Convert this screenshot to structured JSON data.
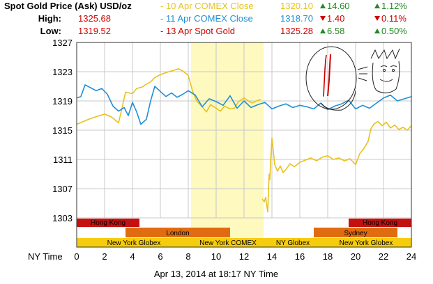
{
  "header": {
    "title": "Spot Gold Price (Ask) USD/oz",
    "high_label": "High:",
    "high_value": "1325.68",
    "low_label": "Low:",
    "low_value": "1319.52",
    "rows": [
      {
        "label": "- 10 Apr COMEX Close",
        "price": "1320.10",
        "change": "14.60",
        "pct": "1.12%",
        "dir": "up",
        "color": "#e8c21c"
      },
      {
        "label": "- 11 Apr COMEX Close",
        "price": "1318.70",
        "change": "1.40",
        "pct": "0.11%",
        "dir": "down",
        "color": "#1f8fd6"
      },
      {
        "label": "- 13 Apr Spot Gold",
        "price": "1325.28",
        "change": "6.58",
        "pct": "0.50%",
        "dir": "up",
        "color": "#cc0000"
      }
    ]
  },
  "colors": {
    "up": "#228822",
    "down": "#cc0000",
    "high": "#cc0000",
    "gold": "#e8c21c",
    "blue": "#1f8fd6",
    "red": "#cc0000",
    "hongkong": "#c41010",
    "london": "#e06b10",
    "sydney": "#e06b10",
    "newyork": "#f6cc0f",
    "highlight": "#fdf9bf"
  },
  "sessions": [
    {
      "name": "Hong Kong",
      "row": 0,
      "spans": [
        [
          0,
          4.5
        ],
        [
          19.5,
          24
        ]
      ]
    },
    {
      "name": "London",
      "row": 1,
      "spans": [
        [
          3.5,
          11
        ]
      ]
    },
    {
      "name": "Sydney",
      "row": 1,
      "spans": [
        [
          17,
          23
        ]
      ]
    },
    {
      "name": "New York Globex",
      "row": 2,
      "spans": [
        [
          0,
          8.2
        ]
      ]
    },
    {
      "name": "New York COMEX",
      "row": 2,
      "spans": [
        [
          8.2,
          13.5
        ]
      ]
    },
    {
      "name": "NY Globex",
      "row": 2,
      "spans": [
        [
          13.5,
          17.5
        ]
      ]
    },
    {
      "name": "New York Globex",
      "row": 2,
      "spans": [
        [
          17.5,
          24
        ]
      ]
    }
  ],
  "footer": {
    "x_title": "NY Time",
    "timestamp": "Apr 13, 2014 at 18:17 NY Time"
  },
  "chart_data": {
    "type": "line",
    "xlabel": "NY Time",
    "ylabel": "",
    "xlim": [
      0,
      24
    ],
    "ylim": [
      1303,
      1327
    ],
    "xticks": [
      0,
      2,
      4,
      6,
      8,
      10,
      12,
      14,
      16,
      18,
      20,
      22,
      24
    ],
    "yticks": [
      1303,
      1307,
      1311,
      1315,
      1319,
      1323,
      1327
    ],
    "highlight_range": [
      8.2,
      13.4
    ],
    "series": [
      {
        "name": "10 Apr",
        "color": "#e8c21c",
        "x": [
          0,
          0.5,
          1,
          1.5,
          2,
          2.5,
          3,
          3.2,
          3.5,
          4,
          4.3,
          4.7,
          5,
          5.3,
          5.6,
          6,
          6.3,
          6.6,
          7,
          7.3,
          7.6,
          8,
          8.3,
          8.6,
          9,
          9.3,
          9.6,
          10,
          10.3,
          10.6,
          11,
          11.3,
          11.6,
          12,
          12.3,
          12.6,
          13,
          13.2
        ],
        "y": [
          1315.8,
          1316.2,
          1316.6,
          1316.9,
          1317.2,
          1316.8,
          1316.0,
          1317.6,
          1320.2,
          1320.0,
          1320.7,
          1320.9,
          1321.3,
          1321.6,
          1322.2,
          1322.6,
          1322.8,
          1323.0,
          1323.2,
          1323.4,
          1323.1,
          1322.5,
          1320.4,
          1319.0,
          1318.2,
          1317.5,
          1318.5,
          1318.0,
          1317.6,
          1318.3,
          1317.9,
          1318.0,
          1318.9,
          1319.4,
          1319.0,
          1318.7,
          1319.1,
          1319.2
        ]
      },
      {
        "name": "11 Apr",
        "color": "#1f8fd6",
        "x": [
          0,
          0.3,
          0.6,
          1,
          1.4,
          1.8,
          2.2,
          2.6,
          3,
          3.4,
          3.7,
          4,
          4.3,
          4.6,
          5,
          5.3,
          5.6,
          6,
          6.4,
          6.8,
          7.2,
          7.6,
          8,
          8.5,
          9,
          9.5,
          10,
          10.5,
          11,
          11.5,
          12,
          12.5,
          13,
          13.5,
          14,
          14.5,
          15,
          15.5,
          16,
          16.5,
          17,
          17.5,
          18,
          18.5,
          19,
          19.5,
          20,
          20.5,
          21,
          21.5,
          22,
          22.5,
          23,
          23.5,
          24
        ],
        "y": [
          1319.4,
          1319.6,
          1321.2,
          1320.8,
          1320.4,
          1320.7,
          1319.9,
          1318.3,
          1317.6,
          1318.1,
          1317.0,
          1318.8,
          1317.5,
          1315.8,
          1316.5,
          1319.0,
          1321.0,
          1320.3,
          1319.6,
          1320.1,
          1319.5,
          1319.9,
          1320.4,
          1319.8,
          1318.2,
          1319.3,
          1318.9,
          1318.4,
          1319.7,
          1318.0,
          1319.0,
          1318.1,
          1318.5,
          1318.8,
          1317.9,
          1318.3,
          1318.6,
          1318.1,
          1318.4,
          1318.2,
          1317.9,
          1318.7,
          1317.8,
          1318.3,
          1318.6,
          1319.1,
          1317.9,
          1318.4,
          1318.0,
          1318.7,
          1319.4,
          1319.8,
          1319.0,
          1319.3,
          1319.6
        ]
      },
      {
        "name": "13 Apr",
        "color": "#cc0000",
        "x": [
          17.7,
          17.75,
          17.8,
          17.85,
          17.9
        ],
        "y": [
          1319.6,
          1321.5,
          1323.3,
          1324.6,
          1325.3
        ]
      },
      {
        "name": "10 Apr (late)",
        "color": "#e8c21c",
        "x": [
          13.3,
          13.45,
          13.55,
          13.7,
          13.8,
          13.85,
          13.9,
          14.0,
          14.2,
          14.4,
          14.6,
          14.8,
          15.0,
          15.3,
          15.6,
          16.0,
          16.4,
          16.8,
          17.2,
          17.6,
          18.0,
          18.4,
          18.8,
          19.2,
          19.6,
          20.0,
          20.3,
          20.6,
          20.9,
          21.1,
          21.3,
          21.6,
          21.9,
          22.2,
          22.5,
          22.8,
          23.1,
          23.4,
          23.7,
          24
        ],
        "y": [
          1305.6,
          1305.2,
          1305.8,
          1303.8,
          1309.0,
          1308.2,
          1310.5,
          1313.9,
          1310.3,
          1309.4,
          1310.1,
          1309.2,
          1309.6,
          1310.4,
          1310.0,
          1310.6,
          1310.9,
          1311.2,
          1310.8,
          1311.3,
          1311.5,
          1311.0,
          1311.2,
          1310.8,
          1311.1,
          1310.3,
          1311.8,
          1312.5,
          1313.5,
          1315.2,
          1315.8,
          1316.2,
          1315.6,
          1316.1,
          1315.3,
          1315.7,
          1315.1,
          1315.4,
          1315.0,
          1315.6
        ]
      }
    ]
  }
}
